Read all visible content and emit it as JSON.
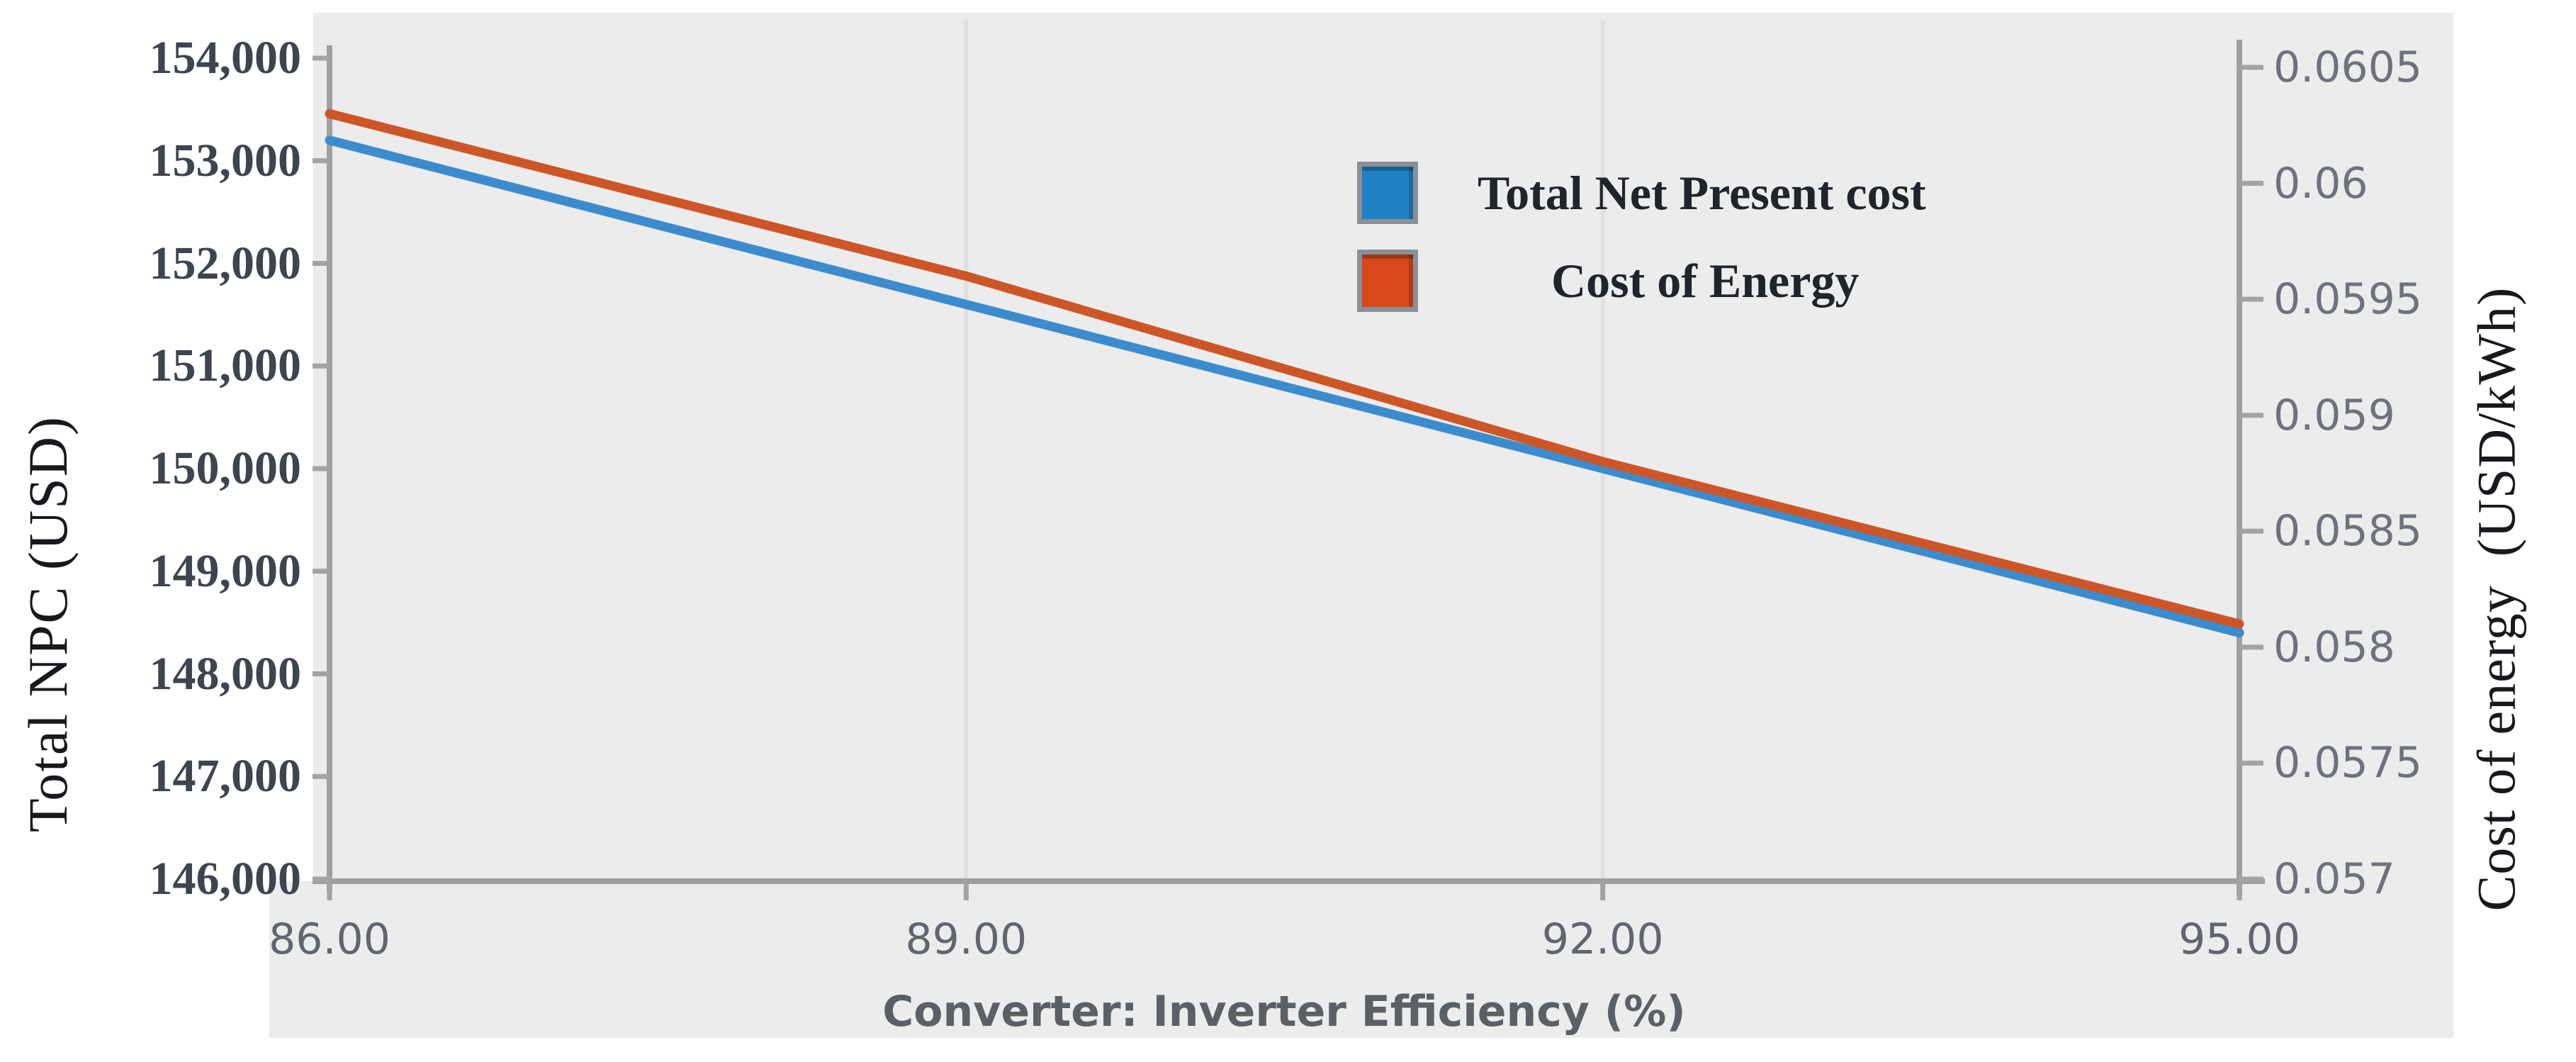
{
  "figure": {
    "plot_background_color": "#ececec",
    "page_background_color": "#ffffff",
    "axis_line_color": "#9f9f9f",
    "tick_color": "#a3a3a3",
    "gridline_color": "#e0e0e0"
  },
  "chart_data": {
    "type": "line",
    "title": "",
    "xlabel": "Converter: Inverter Efficiency (%)",
    "x": [
      86,
      89,
      92,
      95
    ],
    "x_tick_labels": [
      "86.00",
      "89.00",
      "92.00",
      "95.00"
    ],
    "xlim": [
      86,
      95
    ],
    "grid": {
      "vertical_gridlines_at_x": [
        89,
        92
      ]
    },
    "left_axis": {
      "label": "Total NPC (USD)",
      "ylim": [
        146000,
        154000
      ],
      "tick_step": 1000,
      "tick_labels_top_to_bottom": [
        "154,000",
        "153,000",
        "152,000",
        "151,000",
        "150,000",
        "149,000",
        "148,000",
        "147,000",
        "146,000"
      ]
    },
    "right_axis": {
      "label": "Cost of energy  (USD/kWh)",
      "ylim": [
        0.057,
        0.0605
      ],
      "tick_step": 0.0005,
      "tick_labels_top_to_bottom": [
        "0.0605",
        "0.06",
        "0.0595",
        "0.059",
        "0.0585",
        "0.058",
        "0.0575",
        "0.057"
      ]
    },
    "series": [
      {
        "name": "Total Net Present cost",
        "axis": "left",
        "line_color": "#3c8ccd",
        "swatch_color": "#2180c4",
        "values": [
          153200,
          151600,
          150000,
          148400
        ]
      },
      {
        "name": "Cost of Energy",
        "axis": "right",
        "line_color": "#cd5628",
        "swatch_color": "#d8481a",
        "values": [
          0.0603,
          0.0596,
          0.0588,
          0.0581
        ]
      }
    ],
    "legend": {
      "position": "top-right-inside",
      "entries": [
        "Total Net Present cost",
        "Cost of Energy"
      ]
    }
  }
}
